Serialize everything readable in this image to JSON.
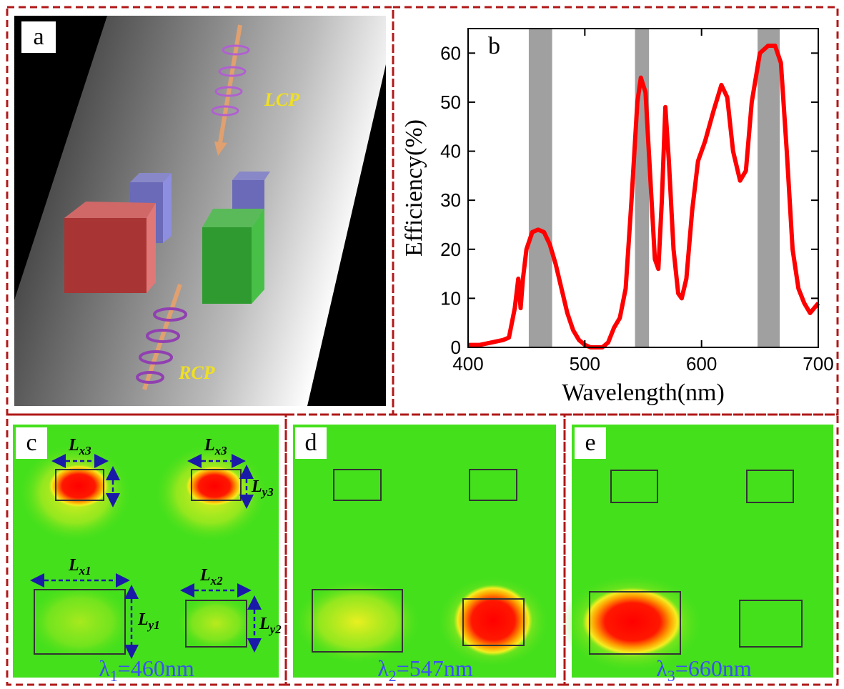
{
  "panel_a": {
    "label": "a",
    "lcp": "LCP",
    "rcp": "RCP"
  },
  "chart_data": {
    "type": "line",
    "x": [
      400,
      410,
      420,
      430,
      435,
      440,
      443,
      445,
      447,
      450,
      455,
      460,
      465,
      470,
      475,
      480,
      485,
      490,
      495,
      500,
      505,
      510,
      515,
      520,
      525,
      530,
      535,
      540,
      545,
      548,
      552,
      556,
      560,
      563,
      566,
      569,
      572,
      576,
      580,
      583,
      587,
      592,
      597,
      603,
      610,
      617,
      622,
      627,
      633,
      638,
      643,
      650,
      657,
      663,
      668,
      673,
      678,
      683,
      688,
      693,
      700
    ],
    "values": [
      0.5,
      0.5,
      1,
      1.5,
      2,
      8,
      14,
      8,
      14,
      20,
      23.5,
      24,
      23.5,
      21,
      17,
      12,
      7,
      3.5,
      1.5,
      0.5,
      0,
      0,
      0,
      1,
      4,
      6,
      12,
      30,
      50,
      55,
      52,
      35,
      18,
      16,
      30,
      49,
      38,
      20,
      11,
      10,
      14,
      28,
      38,
      42,
      48,
      53.5,
      51,
      40,
      34,
      36,
      50,
      60,
      61.5,
      61.5,
      58,
      40,
      20,
      12,
      9,
      7,
      9
    ],
    "color": "#ff0000",
    "xlim": [
      400,
      700
    ],
    "xticks": [
      400,
      500,
      600,
      700
    ],
    "ylim": [
      0,
      65
    ],
    "yticks": [
      0,
      10,
      20,
      30,
      40,
      50,
      60
    ],
    "x_label": "Wavelength(nm)",
    "y_label": "Efficiency(%)",
    "annotations": [
      "b"
    ],
    "highlight_bands": [
      [
        452,
        472
      ],
      [
        543,
        555
      ],
      [
        648,
        667
      ]
    ],
    "band_color": "#a0a0a0"
  },
  "panel_c": {
    "label": "c",
    "dimensions": [
      {
        "base": "L",
        "sub": "x3"
      },
      {
        "base": "L",
        "sub": "x3"
      },
      {
        "base": "L",
        "sub": "y3"
      },
      {
        "base": "L",
        "sub": "x1"
      },
      {
        "base": "L",
        "sub": "y1"
      },
      {
        "base": "L",
        "sub": "x2"
      },
      {
        "base": "L",
        "sub": "y2"
      }
    ],
    "caption": {
      "base": "λ",
      "sub": "1",
      "text": "=460nm"
    }
  },
  "panel_d": {
    "label": "d",
    "caption": {
      "base": "λ",
      "sub": "2",
      "text": "=547nm"
    }
  },
  "panel_e": {
    "label": "e",
    "caption": {
      "base": "λ",
      "sub": "3",
      "text": "=660nm"
    }
  }
}
